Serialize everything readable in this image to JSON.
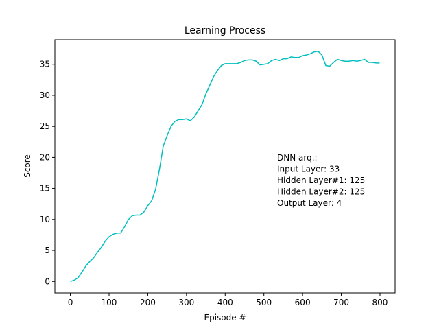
{
  "chart_data": {
    "type": "line",
    "title": "Learning Process",
    "x_label": "Episode #",
    "y_label": "Score",
    "x": [
      0,
      10,
      20,
      30,
      40,
      50,
      60,
      70,
      80,
      90,
      100,
      110,
      120,
      130,
      140,
      150,
      160,
      170,
      180,
      190,
      200,
      210,
      220,
      230,
      240,
      250,
      260,
      270,
      280,
      290,
      300,
      310,
      320,
      330,
      340,
      350,
      360,
      370,
      380,
      390,
      400,
      410,
      420,
      430,
      440,
      450,
      460,
      470,
      480,
      490,
      500,
      510,
      520,
      530,
      540,
      550,
      560,
      570,
      580,
      590,
      600,
      610,
      620,
      630,
      640,
      650,
      660,
      670,
      680,
      690,
      700,
      710,
      720,
      730,
      740,
      750,
      760,
      770,
      780,
      790,
      799
    ],
    "series": [
      {
        "name": "Score",
        "color": "#00bfbf",
        "values": [
          0,
          0.2,
          0.6,
          1.5,
          2.5,
          3.2,
          3.8,
          4.7,
          5.5,
          6.5,
          7.2,
          7.6,
          7.8,
          7.8,
          8.8,
          10,
          10.6,
          10.7,
          10.7,
          11.2,
          12.2,
          13,
          14.8,
          18,
          21.8,
          23.5,
          25,
          25.8,
          26.1,
          26.1,
          26.2,
          25.9,
          26.5,
          27.5,
          28.5,
          30.2,
          31.6,
          33,
          34,
          34.8,
          35.1,
          35.1,
          35.1,
          35.1,
          35.3,
          35.6,
          35.7,
          35.7,
          35.5,
          34.9,
          35,
          35.1,
          35.6,
          35.8,
          35.6,
          35.9,
          35.9,
          36.2,
          36.1,
          36.1,
          36.4,
          36.5,
          36.7,
          37,
          37.1,
          36.5,
          34.8,
          34.7,
          35.3,
          35.8,
          35.6,
          35.5,
          35.5,
          35.6,
          35.5,
          35.6,
          35.8,
          35.3,
          35.3,
          35.2,
          35.2
        ]
      }
    ],
    "xlim": [
      -40,
      839
    ],
    "ylim": [
      -1.85,
      38.95
    ],
    "xticks": [
      0,
      100,
      200,
      300,
      400,
      500,
      600,
      700,
      800
    ],
    "yticks": [
      0,
      5,
      10,
      15,
      20,
      25,
      30,
      35
    ],
    "annotation": [
      "DNN arq.:",
      "Input Layer: 33",
      "Hidden Layer#1: 125",
      "Hidden Layer#2: 125",
      "Output Layer: 4"
    ]
  }
}
